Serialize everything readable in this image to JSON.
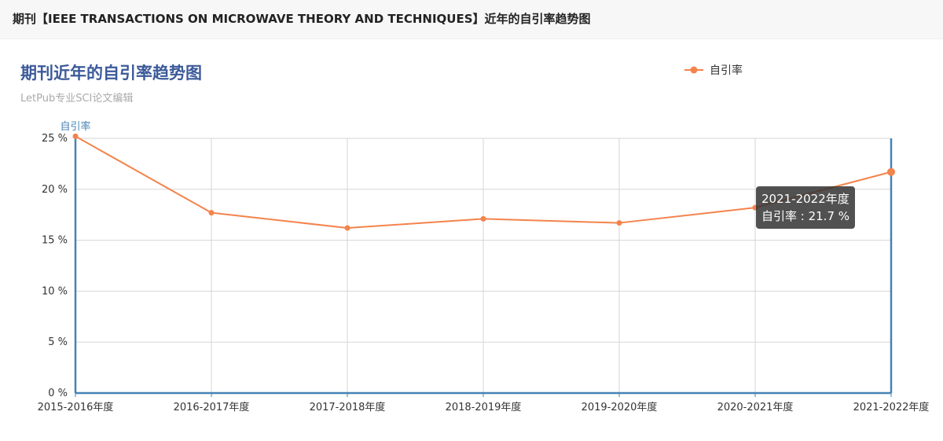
{
  "header": {
    "title": "期刊【IEEE TRANSACTIONS ON MICROWAVE THEORY AND TECHNIQUES】近年的自引率趋势图"
  },
  "chart_data": {
    "type": "line",
    "title": "期刊近年的自引率趋势图",
    "subtitle": "LetPub专业SCI论文编辑",
    "ylabel": "自引率",
    "xlabel": "",
    "categories": [
      "2015-2016年度",
      "2016-2017年度",
      "2017-2018年度",
      "2018-2019年度",
      "2019-2020年度",
      "2020-2021年度",
      "2021-2022年度"
    ],
    "series": [
      {
        "name": "自引率",
        "values": [
          25.2,
          17.7,
          16.2,
          17.1,
          16.7,
          18.2,
          21.7
        ],
        "color": "#f4834c"
      }
    ],
    "ylim": [
      0,
      25
    ],
    "yticks": [
      0,
      5,
      10,
      15,
      20,
      25
    ],
    "ytick_suffix": " %",
    "legend_position": "top-right",
    "grid": true,
    "axis_color": "#4682b4",
    "tooltip": {
      "category": "2021-2022年度",
      "text": "自引率 : 21.7 %"
    }
  }
}
